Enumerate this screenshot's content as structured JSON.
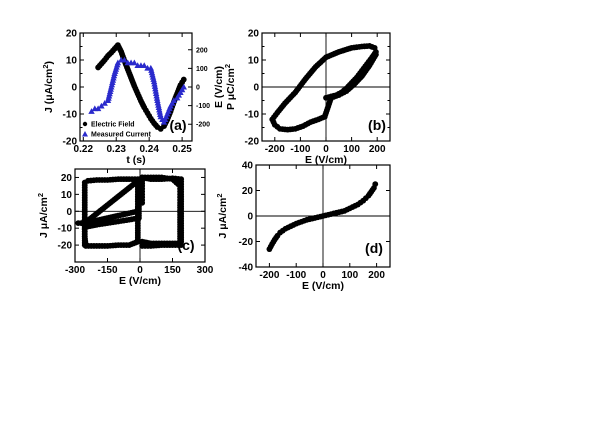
{
  "figure": {
    "background": "#ffffff",
    "ink": "#000000",
    "current_color": "#2a2acc"
  },
  "chart_data": [
    {
      "id": "a",
      "type": "line",
      "panel_label": "(a)",
      "xlabel": "t (s)",
      "ylabel": "J (μA/cm²)",
      "ylabel2": "E (V/cm)",
      "xlim": [
        0.219,
        0.253
      ],
      "ylim": [
        -20,
        20
      ],
      "y2lim": [
        -290,
        290
      ],
      "xticks": [
        0.22,
        0.23,
        0.24,
        0.25
      ],
      "xtick_labels": [
        "0.22",
        "0.23",
        "0.24",
        "0.25"
      ],
      "yticks": [
        -20,
        -15,
        -10,
        -5,
        0,
        5,
        10,
        15,
        20
      ],
      "ytick_labels": [
        "-20",
        "",
        "-10",
        "",
        "0",
        "",
        "10",
        "",
        "20"
      ],
      "y2ticks": [
        -200,
        -100,
        0,
        100,
        200
      ],
      "y2tick_labels": [
        "-200",
        "-100",
        "0",
        "100",
        "200"
      ],
      "legend": [
        {
          "label": "Electric Field",
          "marker": "circle"
        },
        {
          "label": "Measured Current",
          "marker": "triangle"
        }
      ],
      "series": [
        {
          "name": "Electric Field",
          "axis": "right",
          "marker": "circle",
          "x": [
            0.2245,
            0.2255,
            0.2265,
            0.2275,
            0.2285,
            0.2295,
            0.2305,
            0.2315,
            0.2325,
            0.2335,
            0.2345,
            0.2355,
            0.2365,
            0.2375,
            0.2385,
            0.2395,
            0.2405,
            0.2415,
            0.2425,
            0.2435,
            0.2445,
            0.2455,
            0.2465,
            0.2475,
            0.2485,
            0.2495,
            0.2505
          ],
          "y": [
            105,
            125,
            145,
            168,
            185,
            205,
            225,
            190,
            140,
            95,
            50,
            5,
            -35,
            -75,
            -110,
            -140,
            -170,
            -195,
            -215,
            -225,
            -210,
            -175,
            -130,
            -80,
            -35,
            10,
            40
          ]
        },
        {
          "name": "Measured Current",
          "axis": "left",
          "marker": "triangle",
          "x": [
            0.2225,
            0.2235,
            0.2245,
            0.2255,
            0.2265,
            0.2275,
            0.2285,
            0.2295,
            0.2305,
            0.2315,
            0.2325,
            0.2335,
            0.2345,
            0.2355,
            0.2365,
            0.2375,
            0.2385,
            0.2395,
            0.2405,
            0.2415,
            0.2425,
            0.2435,
            0.2445,
            0.2455,
            0.2465,
            0.2475,
            0.2485,
            0.2495,
            0.2505
          ],
          "y": [
            -9,
            -8,
            -8,
            -7,
            -6,
            -5,
            0,
            5,
            9,
            10,
            10,
            9,
            9,
            9,
            8,
            8,
            8,
            7,
            7,
            2,
            -5,
            -11,
            -13,
            -10,
            -7,
            -5,
            -4,
            -2,
            0
          ]
        }
      ]
    },
    {
      "id": "b",
      "type": "scatter",
      "panel_label": "(b)",
      "xlabel": "E (V/cm)",
      "ylabel": "P μC/cm²",
      "xlim": [
        -250,
        250
      ],
      "ylim": [
        -20,
        20
      ],
      "xticks": [
        -200,
        -100,
        0,
        100,
        200
      ],
      "xtick_labels": [
        "-200",
        "-100",
        "0",
        "100",
        "200"
      ],
      "yticks": [
        -20,
        -15,
        -10,
        -5,
        0,
        5,
        10,
        15,
        20
      ],
      "ytick_labels": [
        "-20",
        "",
        "-10",
        "",
        "0",
        "",
        "10",
        "",
        "20"
      ],
      "series": [
        {
          "marker": "circle",
          "x": [
            0,
            20,
            40,
            60,
            80,
            100,
            120,
            140,
            160,
            180,
            195,
            190,
            170,
            140,
            100,
            50,
            0,
            -40,
            -80,
            -120,
            -160,
            -190,
            -210,
            -200,
            -180,
            -150,
            -120,
            -90,
            -60,
            -30,
            -5,
            -5,
            20,
            50,
            80,
            110,
            140,
            170,
            195
          ],
          "y": [
            -4,
            -3.5,
            -3,
            -2,
            -0.5,
            1.5,
            3.5,
            6,
            8.5,
            11,
            13,
            14.5,
            15.2,
            15,
            14.5,
            13,
            11,
            7.5,
            3,
            -2,
            -6,
            -9.5,
            -12,
            -14,
            -15.5,
            -15.8,
            -15.5,
            -14.5,
            -13,
            -12,
            -11,
            -11,
            -4,
            -3,
            -1.5,
            1,
            4,
            8,
            12
          ]
        }
      ],
      "crosshair": true
    },
    {
      "id": "c",
      "type": "scatter",
      "panel_label": "(c)",
      "xlabel": "E (V/cm)",
      "ylabel": "J μA/cm²",
      "xlim": [
        -300,
        300
      ],
      "ylim": [
        -30,
        25
      ],
      "xticks": [
        -300,
        -150,
        0,
        150,
        300
      ],
      "xtick_labels": [
        "-300",
        "-150",
        "0",
        "150",
        "300"
      ],
      "yticks": [
        -20,
        -10,
        0,
        10,
        20
      ],
      "ytick_labels": [
        "-20",
        "-10",
        "0",
        "10",
        "20"
      ],
      "series": [
        {
          "marker": "circle",
          "x": [
            -255,
            -255,
            -255,
            -255,
            -255,
            -240,
            -200,
            -150,
            -100,
            -50,
            -10,
            -10,
            -10,
            -10,
            -10,
            -50,
            -100,
            -150,
            -200,
            -250,
            -255,
            -255,
            -255,
            -240,
            -200,
            -150,
            -100,
            -50,
            -5,
            -5,
            10,
            10,
            10,
            10,
            10,
            50,
            100,
            150,
            190,
            190,
            190,
            190,
            190,
            190,
            150,
            100,
            50,
            10,
            10,
            50,
            100,
            150,
            185,
            185,
            185,
            185,
            185,
            150,
            100,
            50,
            10,
            -255,
            -285,
            -255,
            -10,
            -10
          ],
          "y": [
            -20,
            -12,
            -2,
            8,
            17,
            18,
            18.5,
            18.5,
            19,
            19,
            19,
            10,
            0,
            -10,
            -18,
            -20,
            -20,
            -20.5,
            -20.5,
            -20.5,
            -15,
            -5,
            -10,
            -9,
            -8,
            -7,
            -6,
            -5,
            -4,
            4,
            5,
            10,
            15,
            18,
            20,
            19,
            19,
            19.5,
            19,
            10,
            0,
            -10,
            -18,
            -20,
            -20,
            -20,
            -20.5,
            -20.5,
            -18,
            -19,
            -19,
            -19,
            -19,
            -5,
            5,
            10,
            15,
            19,
            20,
            20,
            20,
            -7,
            -7,
            -7,
            0,
            2
          ]
        }
      ],
      "crosshair": true
    },
    {
      "id": "d",
      "type": "scatter",
      "panel_label": "(d)",
      "xlabel": "E (V/cm)",
      "ylabel": "J μA/cm²",
      "xlim": [
        -250,
        250
      ],
      "ylim": [
        -40,
        40
      ],
      "xticks": [
        -200,
        -100,
        0,
        100,
        200
      ],
      "xtick_labels": [
        "-200",
        "-100",
        "0",
        "100",
        "200"
      ],
      "yticks": [
        -40,
        -20,
        0,
        20,
        40
      ],
      "ytick_labels": [
        "-40",
        "-20",
        "0",
        "20",
        "40"
      ],
      "series": [
        {
          "marker": "circle",
          "x": [
            -200,
            -190,
            -180,
            -170,
            -160,
            -150,
            -140,
            -130,
            -120,
            -110,
            -100,
            -90,
            -80,
            -70,
            -60,
            -50,
            -40,
            -30,
            -20,
            -10,
            0,
            10,
            20,
            30,
            40,
            50,
            60,
            70,
            80,
            90,
            100,
            110,
            120,
            130,
            140,
            150,
            160,
            170,
            180,
            190,
            195
          ],
          "y": [
            -26,
            -22,
            -18.5,
            -15.5,
            -13,
            -11.5,
            -10,
            -9,
            -8,
            -7,
            -6,
            -5.2,
            -4.5,
            -3.7,
            -3,
            -2.5,
            -2,
            -1.5,
            -1,
            -0.5,
            0,
            0.5,
            1,
            1.5,
            2,
            2.5,
            3,
            3.5,
            4,
            5,
            6,
            7,
            8,
            9,
            10.5,
            12,
            14,
            16,
            19,
            22,
            25
          ]
        }
      ],
      "crosshair": true
    }
  ]
}
